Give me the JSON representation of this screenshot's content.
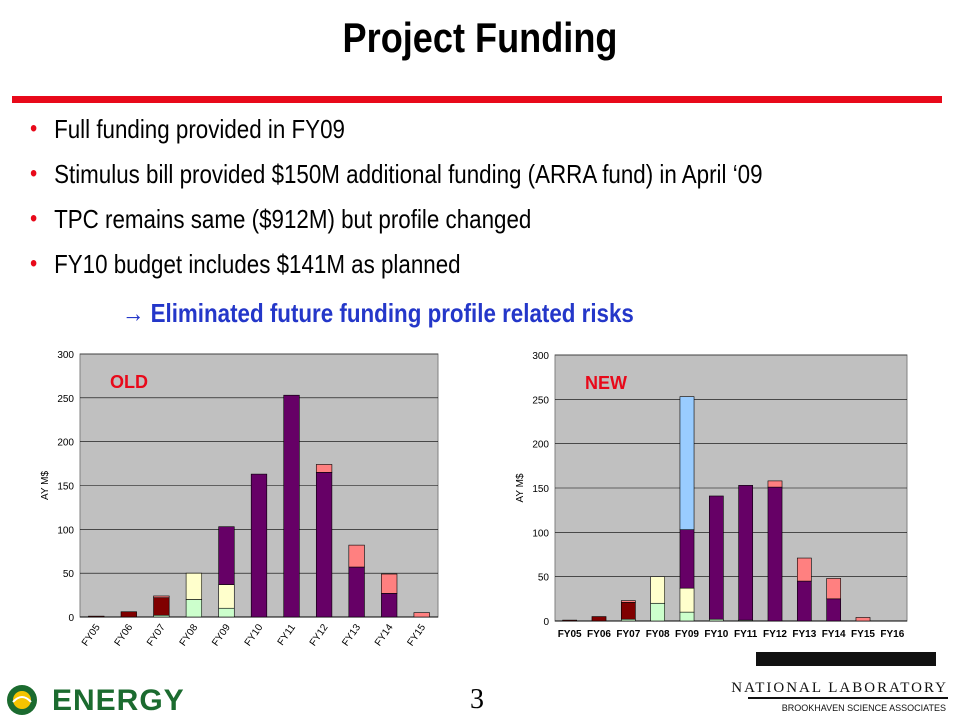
{
  "slide": {
    "title": "Project Funding",
    "bullets": [
      "Full funding provided in FY09",
      "Stimulus bill provided $150M additional funding (ARRA fund) in April ‘09",
      "TPC remains same ($912M) but profile changed",
      "FY10 budget includes $141M as planned"
    ],
    "arrow_text": "→  Eliminated future funding profile related risks",
    "page_number": "3",
    "footer": {
      "left_logo_text": "ENERGY",
      "lab_name": "NATIONAL LABORATORY",
      "associates": "BROOKHAVEN SCIENCE ASSOCIATES"
    },
    "colors": {
      "accent_red": "#e8091a",
      "arrow_blue": "#2437c9",
      "label_red": "#e8091a",
      "plot_bg": "#c0c0c0"
    }
  },
  "chart_data": [
    {
      "type": "bar",
      "stacked": true,
      "label": "OLD",
      "ylabel": "AY M$",
      "ylim": [
        0,
        300
      ],
      "yticks": [
        0,
        50,
        100,
        150,
        200,
        250,
        300
      ],
      "x_tick_rotation": "rotated",
      "grid": true,
      "categories": [
        "FY05",
        "FY06",
        "FY07",
        "FY08",
        "FY09",
        "FY10",
        "FY11",
        "FY12",
        "FY13",
        "FY14",
        "FY15"
      ],
      "series": [
        {
          "color": "#ccffcc",
          "values": [
            0,
            0,
            2,
            20,
            10,
            0,
            0,
            0,
            0,
            0,
            0
          ]
        },
        {
          "color": "#ffffcc",
          "values": [
            0,
            0,
            0,
            30,
            27,
            0,
            0,
            0,
            0,
            0,
            0
          ]
        },
        {
          "color": "#800000",
          "values": [
            1,
            6,
            20,
            0,
            0,
            0,
            0,
            0,
            0,
            0,
            0
          ]
        },
        {
          "color": "#660066",
          "values": [
            0,
            0,
            0,
            0,
            66,
            163,
            253,
            165,
            57,
            27,
            0
          ]
        },
        {
          "color": "#ff8080",
          "values": [
            0,
            0,
            2,
            0,
            0,
            0,
            0,
            9,
            25,
            22,
            5
          ]
        }
      ]
    },
    {
      "type": "bar",
      "stacked": true,
      "label": "NEW",
      "ylabel": "AY M$",
      "ylim": [
        0,
        300
      ],
      "yticks": [
        0,
        50,
        100,
        150,
        200,
        250,
        300
      ],
      "x_tick_rotation": "horizontal",
      "grid": true,
      "categories": [
        "FY05",
        "FY06",
        "FY07",
        "FY08",
        "FY09",
        "FY10",
        "FY11",
        "FY12",
        "FY13",
        "FY14",
        "FY15",
        "FY16"
      ],
      "series": [
        {
          "color": "#ccffcc",
          "values": [
            0,
            0,
            2,
            20,
            10,
            2,
            1,
            0,
            0,
            0,
            0,
            0
          ]
        },
        {
          "color": "#ffffcc",
          "values": [
            0,
            0,
            0,
            30,
            27,
            0,
            0,
            0,
            0,
            0,
            0,
            0
          ]
        },
        {
          "color": "#800000",
          "values": [
            1,
            5,
            19,
            0,
            0,
            0,
            0,
            0,
            0,
            0,
            0,
            0
          ]
        },
        {
          "color": "#660066",
          "values": [
            0,
            0,
            0,
            0,
            66,
            139,
            152,
            151,
            45,
            25,
            0,
            0
          ]
        },
        {
          "color": "#ff8080",
          "values": [
            0,
            0,
            2,
            0,
            0,
            0,
            0,
            7,
            26,
            23,
            4,
            0
          ]
        },
        {
          "color": "#99ccff",
          "values": [
            0,
            0,
            0,
            0,
            150,
            0,
            0,
            0,
            0,
            0,
            0,
            0
          ]
        }
      ]
    }
  ]
}
